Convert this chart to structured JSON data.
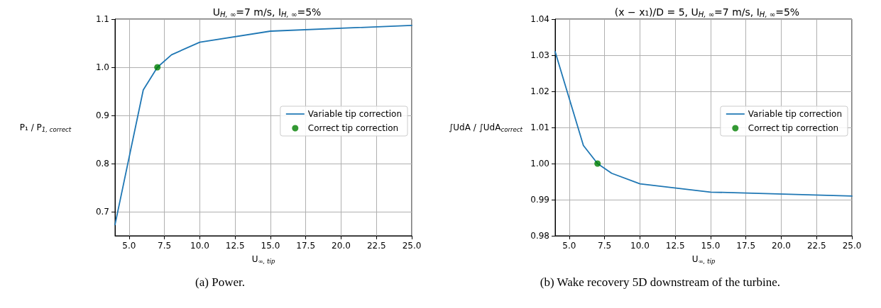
{
  "chart_data": [
    {
      "type": "line",
      "title": "U$_{H, ∞}$=7 m/s, I$_{H, ∞}$=5%",
      "xlabel": "U$_{∞, tip}$",
      "ylabel": "P₁ / P$_{1, correct}$",
      "xlim": [
        4,
        25
      ],
      "ylim": [
        0.65,
        1.1
      ],
      "xticks": [
        {
          "value": 5,
          "label": "5.0"
        },
        {
          "value": 7.5,
          "label": "7.5"
        },
        {
          "value": 10,
          "label": "10.0"
        },
        {
          "value": 12.5,
          "label": "12.5"
        },
        {
          "value": 15,
          "label": "15.0"
        },
        {
          "value": 17.5,
          "label": "17.5"
        },
        {
          "value": 20,
          "label": "20.0"
        },
        {
          "value": 22.5,
          "label": "22.5"
        },
        {
          "value": 25,
          "label": "25.0"
        }
      ],
      "yticks": [
        0.7,
        0.8,
        0.9,
        {
          "value": 1.0,
          "label": "1.0"
        },
        1.1
      ],
      "grid": true,
      "legend": "right",
      "series": [
        {
          "name": "Variable tip correction",
          "marker": "none",
          "color": "#1f77b4",
          "x": [
            4,
            6,
            7,
            8,
            10,
            15,
            25
          ],
          "values": [
            0.673,
            0.953,
            1.0,
            1.026,
            1.052,
            1.075,
            1.087
          ]
        },
        {
          "name": "Correct tip correction",
          "type": "scatter",
          "marker": "circle",
          "color": "#008000",
          "x": [
            7
          ],
          "values": [
            1.0
          ]
        }
      ],
      "annotations": [
        "(a) Power."
      ]
    },
    {
      "type": "line",
      "title": "(x − x₁)/D = 5, U$_{H, ∞}$=7 m/s, I$_{H, ∞}$=5%",
      "xlabel": "U$_{∞, tip}$",
      "ylabel": "∫UdA / ∫UdA$_{correct}$",
      "xlim": [
        4,
        25
      ],
      "ylim": [
        0.98,
        1.04
      ],
      "xticks": [
        {
          "value": 5,
          "label": "5.0"
        },
        {
          "value": 7.5,
          "label": "7.5"
        },
        {
          "value": 10,
          "label": "10.0"
        },
        {
          "value": 12.5,
          "label": "12.5"
        },
        {
          "value": 15,
          "label": "15.0"
        },
        {
          "value": 17.5,
          "label": "17.5"
        },
        {
          "value": 20,
          "label": "20.0"
        },
        {
          "value": 22.5,
          "label": "22.5"
        },
        {
          "value": 25,
          "label": "25.0"
        }
      ],
      "yticks": [
        0.98,
        0.99,
        {
          "value": 1.0,
          "label": "1.00"
        },
        1.01,
        1.02,
        1.03,
        1.04
      ],
      "grid": true,
      "legend": "right",
      "series": [
        {
          "name": "Variable tip correction",
          "marker": "none",
          "color": "#1f77b4",
          "x": [
            4,
            6,
            7,
            8,
            10,
            15,
            25
          ],
          "values": [
            1.031,
            1.005,
            1.0,
            0.9973,
            0.9944,
            0.9921,
            0.991
          ]
        },
        {
          "name": "Correct tip correction",
          "type": "scatter",
          "marker": "circle",
          "color": "#008000",
          "x": [
            7
          ],
          "values": [
            1.0
          ]
        }
      ],
      "annotations": [
        "(b) Wake recovery 5D downstream of the turbine."
      ]
    }
  ]
}
